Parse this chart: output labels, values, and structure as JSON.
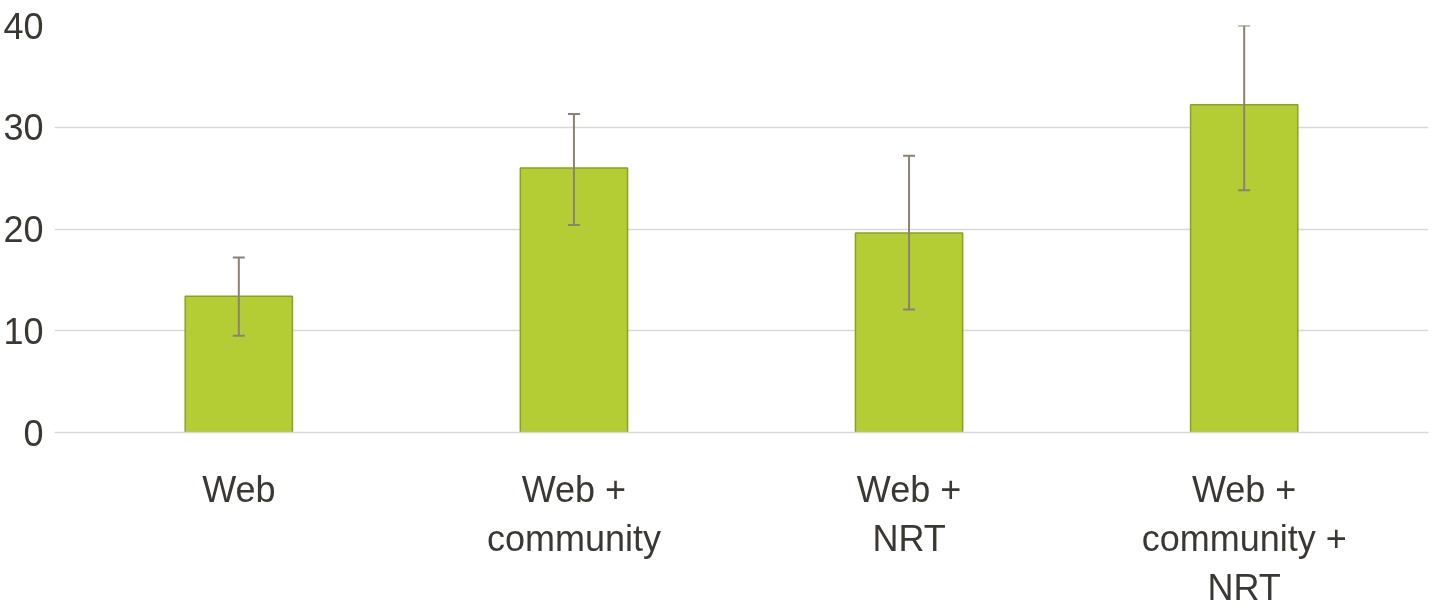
{
  "chart_data": {
    "type": "bar",
    "categories": [
      "Web",
      "Web +\ncommunity",
      "Web +\nNRT",
      "Web +\ncommunity +\nNRT"
    ],
    "values": [
      13.4,
      26.0,
      19.6,
      32.2
    ],
    "errors": [
      [
        9.5,
        17.2
      ],
      [
        20.4,
        31.3
      ],
      [
        12.1,
        27.2
      ],
      [
        23.8,
        40
      ]
    ],
    "color": "#b5cd34",
    "ylim": [
      0,
      40
    ],
    "yticks": [
      0,
      10,
      20,
      30,
      40
    ],
    "grid": "y"
  }
}
